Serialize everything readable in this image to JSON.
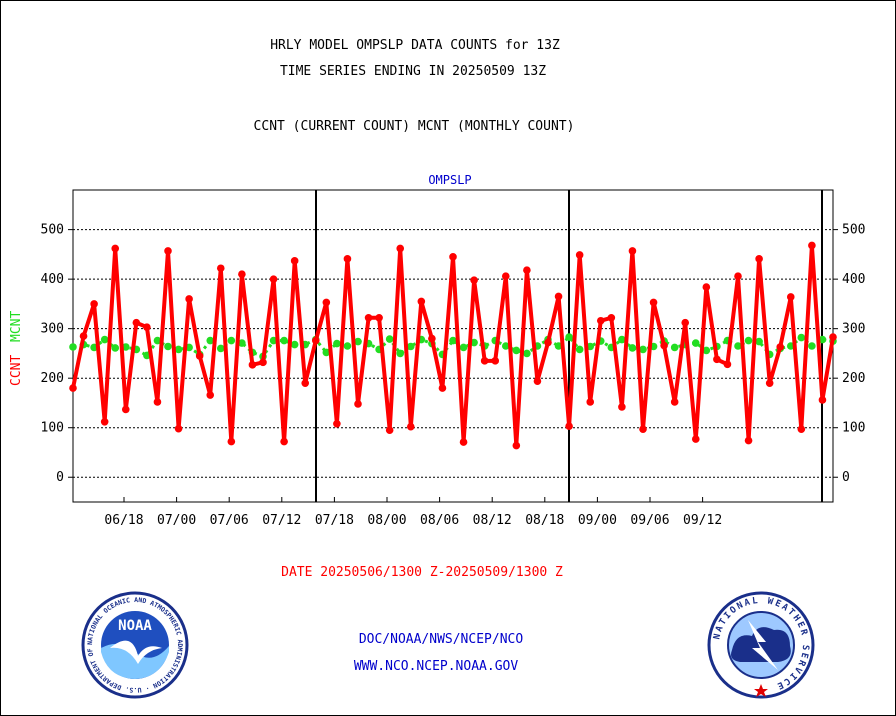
{
  "header": {
    "line1": "HRLY MODEL OMPSLP DATA COUNTS for 13Z",
    "line2": "TIME SERIES ENDING IN 20250509 13Z",
    "line3": "CCNT (CURRENT COUNT) MCNT (MONTHLY COUNT)"
  },
  "footer": {
    "date_range": "DATE 20250506/1300 Z-20250509/1300 Z",
    "org_path": "DOC/NOAA/NWS/NCEP/NCO",
    "website": "WWW.NCO.NCEP.NOAA.GOV"
  },
  "logos": {
    "left": "NOAA",
    "left_ring": "NATIONAL OCEANIC AND ATMOSPHERIC ADMINISTRATION · U.S. DEPARTMENT OF COMMERCE ·",
    "right_ring": "NATIONAL WEATHER SERVICE"
  },
  "colors": {
    "ccnt": "#ff0000",
    "mcnt": "#22dd22",
    "title": "#0000cc",
    "footer_link": "#0000cc",
    "date": "#ff0000"
  },
  "chart_data": {
    "type": "line",
    "title": "OMPSLP",
    "ylabel_left": "CCNT",
    "ylabel_right": "MCNT",
    "ylim": [
      -50,
      580
    ],
    "yticks": [
      0,
      100,
      200,
      300,
      400,
      500
    ],
    "xticks": [
      "06/18",
      "07/00",
      "07/06",
      "07/12",
      "07/18",
      "08/00",
      "08/06",
      "08/12",
      "08/18",
      "09/00",
      "09/06",
      "09/12"
    ],
    "grid": true,
    "series": [
      {
        "name": "CCNT",
        "values": [
          180,
          285,
          350,
          112,
          462,
          137,
          312,
          303,
          152,
          457,
          98,
          360,
          245,
          166,
          422,
          72,
          410,
          227,
          232,
          400,
          72,
          437,
          190,
          276,
          353,
          108,
          441,
          148,
          322,
          322,
          95,
          462,
          102,
          355,
          280,
          180,
          445,
          71,
          398,
          235,
          235,
          406,
          64,
          418,
          194,
          272,
          365,
          103,
          449,
          152,
          316,
          322,
          142,
          457,
          97,
          353,
          266,
          152,
          312,
          77,
          384,
          238,
          228,
          406,
          74,
          441,
          190,
          263,
          364,
          97,
          468,
          156,
          283
        ]
      },
      {
        "name": "MCNT",
        "values": [
          263,
          268,
          262,
          278,
          261,
          263,
          258,
          246,
          276,
          264,
          258,
          262,
          248,
          276,
          260,
          276,
          271,
          252,
          244,
          276,
          276,
          268,
          268,
          278,
          252,
          270,
          265,
          274,
          270,
          258,
          279,
          250,
          264,
          278,
          270,
          248,
          276,
          262,
          272,
          265,
          276,
          265,
          256,
          250,
          265,
          278,
          265,
          283,
          258,
          264,
          275,
          262,
          278,
          261,
          258,
          264,
          275,
          262,
          268,
          271,
          256,
          264,
          276,
          265,
          276,
          274,
          248,
          260,
          265,
          282,
          265,
          278,
          275
        ]
      }
    ]
  }
}
